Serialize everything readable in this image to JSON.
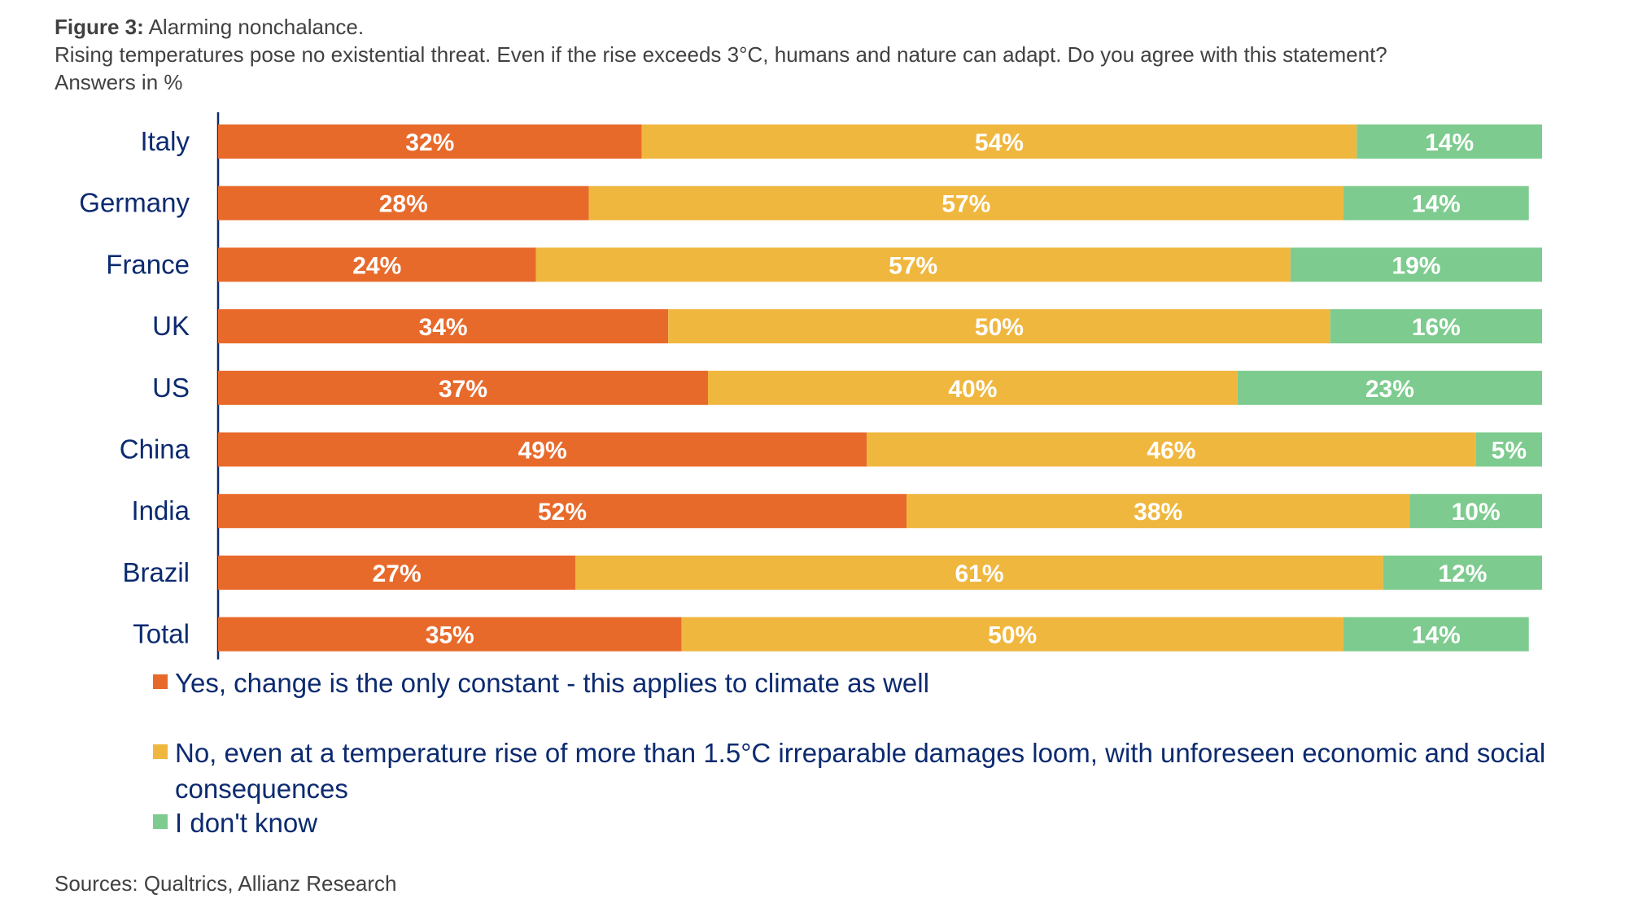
{
  "figure": {
    "label": "Figure 3:",
    "title": "Alarming nonchalance.",
    "question": "Rising temperatures pose no existential threat. Even if the rise exceeds 3°C, humans and nature can adapt. Do you agree with this statement?",
    "unit_note": "Answers in %"
  },
  "source": "Sources: Qualtrics, Allianz Research",
  "chart_data": {
    "type": "bar",
    "orientation": "horizontal",
    "stacked": true,
    "percent_normalized": true,
    "title": "Alarming nonchalance.",
    "xlabel": "",
    "ylabel": "",
    "xlim": [
      0,
      100
    ],
    "grid": false,
    "legend_position": "bottom",
    "categories": [
      "Italy",
      "Germany",
      "France",
      "UK",
      "US",
      "China",
      "India",
      "Brazil",
      "Total"
    ],
    "series": [
      {
        "name": "Yes, change is the only constant - this applies to climate as well",
        "color": "#e86a2b",
        "values": [
          32,
          28,
          24,
          34,
          37,
          49,
          52,
          27,
          35
        ]
      },
      {
        "name": "No, even at a temperature rise of more than 1.5°C irreparable damages loom, with unforeseen economic and social consequences",
        "color": "#f0b73f",
        "values": [
          54,
          57,
          57,
          50,
          40,
          46,
          38,
          61,
          50
        ]
      },
      {
        "name": "I don't know",
        "color": "#7ecb8f",
        "values": [
          14,
          14,
          19,
          16,
          23,
          5,
          10,
          12,
          14
        ]
      }
    ],
    "data_labels": [
      [
        "32%",
        "28%",
        "24%",
        "34%",
        "37%",
        "49%",
        "52%",
        "27%",
        "35%"
      ],
      [
        "54%",
        "57%",
        "57%",
        "50%",
        "40%",
        "46%",
        "38%",
        "61%",
        "50%"
      ],
      [
        "14%",
        "14%",
        "19%",
        "16%",
        "23%",
        "5%",
        "10%",
        "12%",
        "14%"
      ]
    ],
    "category_label_color": "#0b2a6f",
    "axis_color": "#0b2a6f",
    "data_label_color": "#ffffff"
  }
}
